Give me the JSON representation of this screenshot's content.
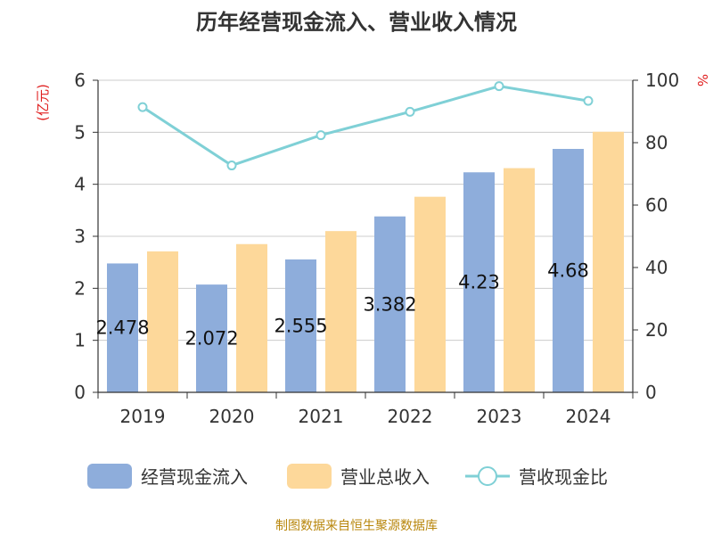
{
  "chart_data": {
    "type": "bar",
    "title": "历年经营现金流入、营业收入情况",
    "categories": [
      "2019",
      "2020",
      "2021",
      "2022",
      "2023",
      "2024"
    ],
    "left_unit": "(亿元)",
    "right_unit": "%",
    "ylim_left": [
      0,
      6
    ],
    "yticks_left": [
      "0",
      "1",
      "2",
      "3",
      "4",
      "5",
      "6"
    ],
    "ylim_right": [
      0,
      100
    ],
    "yticks_right": [
      "0",
      "20",
      "40",
      "60",
      "80",
      "100"
    ],
    "series": [
      {
        "name": "经营现金流入",
        "type": "bar",
        "axis": "left",
        "color": "#8eaddb",
        "values": [
          2.478,
          2.072,
          2.555,
          3.382,
          4.23,
          4.68
        ],
        "labels": [
          "2.478",
          "2.072",
          "2.555",
          "3.382",
          "4.23",
          "4.68"
        ]
      },
      {
        "name": "营业总收入",
        "type": "bar",
        "axis": "left",
        "color": "#fdd89a",
        "values": [
          2.71,
          2.85,
          3.1,
          3.76,
          4.31,
          5.01
        ]
      },
      {
        "name": "营收现金比",
        "type": "line",
        "axis": "right",
        "color": "#7fd0d6",
        "values": [
          91.4,
          72.7,
          82.4,
          89.9,
          98.1,
          93.4
        ]
      }
    ],
    "grid": true,
    "legend_position": "bottom"
  },
  "source_note": "制图数据来自恒生聚源数据库"
}
